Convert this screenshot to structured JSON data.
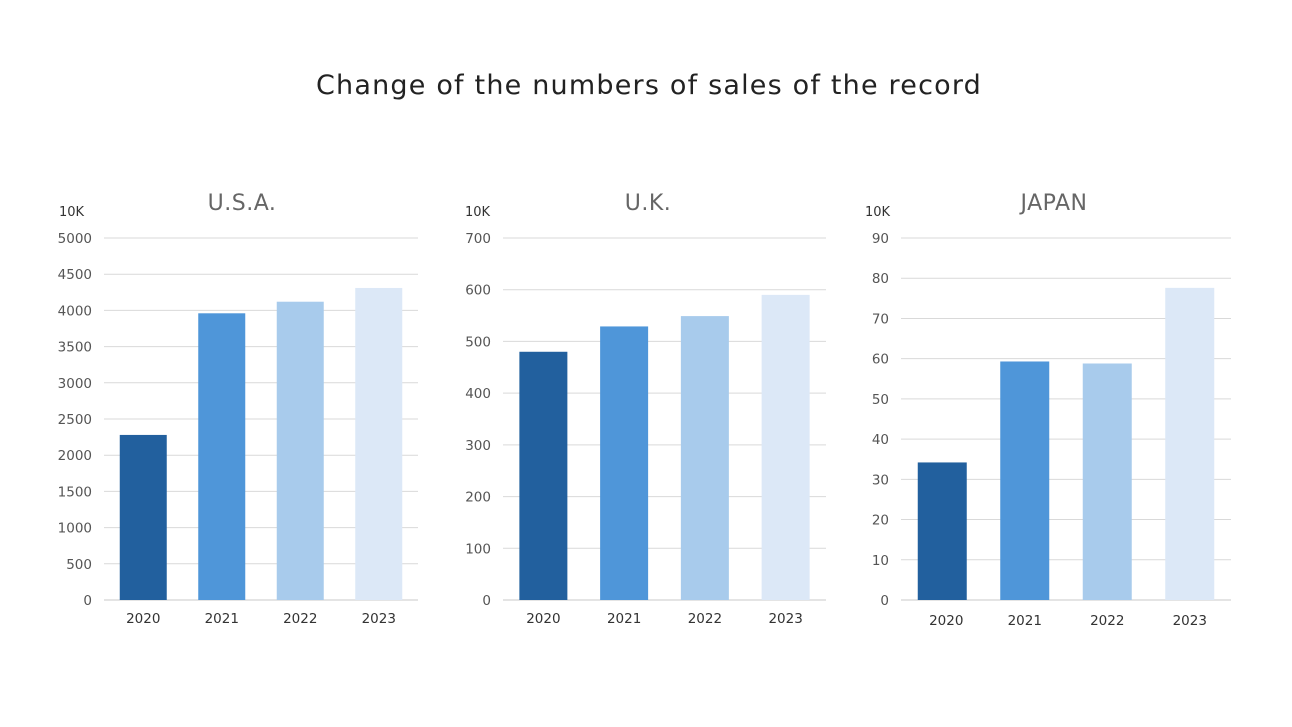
{
  "title": "Change of the numbers of sales of the record",
  "colors": [
    "#22609e",
    "#4f96d9",
    "#a8cbec",
    "#dce8f7"
  ],
  "chart_data": [
    {
      "type": "bar",
      "title": "U.S.A.",
      "unit": "10K",
      "categories": [
        "2020",
        "2021",
        "2022",
        "2023"
      ],
      "values": [
        2280,
        3960,
        4120,
        4310
      ],
      "ylim": [
        0,
        5000
      ],
      "yticks": [
        0,
        500,
        1000,
        1500,
        2000,
        2500,
        3000,
        3500,
        4000,
        4500,
        5000
      ],
      "grid": true
    },
    {
      "type": "bar",
      "title": "U.K.",
      "unit": "10K",
      "categories": [
        "2020",
        "2021",
        "2022",
        "2023"
      ],
      "values": [
        480,
        529,
        549,
        590
      ],
      "ylim": [
        0,
        700
      ],
      "yticks": [
        0,
        100,
        200,
        300,
        400,
        500,
        600,
        700
      ],
      "grid": true
    },
    {
      "type": "bar",
      "title": "JAPAN",
      "unit": "10K",
      "categories": [
        "2020",
        "2021",
        "2022",
        "2023"
      ],
      "values": [
        34.2,
        59.3,
        58.8,
        77.6
      ],
      "ylim": [
        0,
        90
      ],
      "yticks": [
        0,
        10,
        20,
        30,
        40,
        50,
        60,
        70,
        80,
        90
      ],
      "grid": true
    }
  ]
}
